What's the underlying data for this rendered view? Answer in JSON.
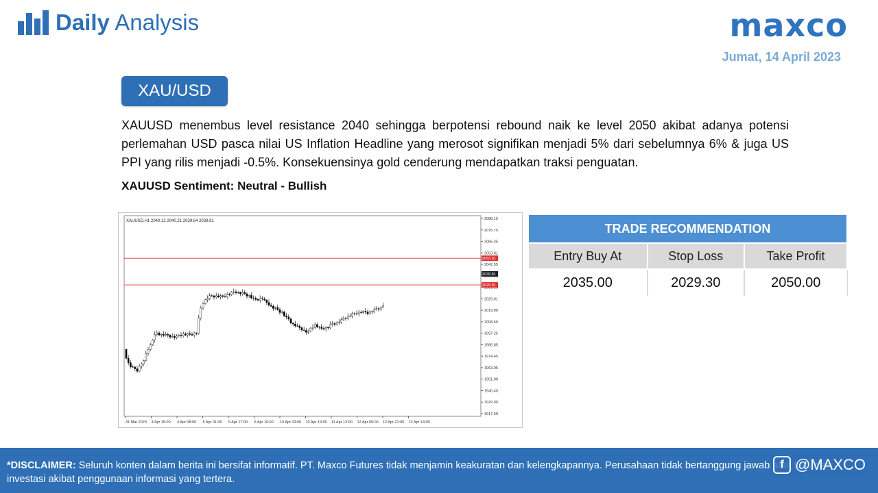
{
  "header": {
    "brand_bold": "Daily",
    "brand_light": "Analysis",
    "logo": "maxco",
    "date": "Jumat, 14 April 2023"
  },
  "pair_label": "XAU/USD",
  "description": "XAUUSD menembus level resistance 2040 sehingga berpotensi rebound naik ke level 2050 akibat adanya potensi perlemahan USD pasca nilai US Inflation Headline yang merosot signifikan menjadi 5% dari sebelumnya 6% & juga US PPI yang rilis menjadi -0.5%. Konsekuensinya gold cenderung mendapatkan traksi penguatan.",
  "sentiment": "XAUUSD Sentiment: Neutral - Bullish",
  "chart_data": {
    "type": "candlestick",
    "title": "XAUUSD,H1  2040.12 2040.21 2039.64 2039.81",
    "y_ticks": [
      "2088.15",
      "2076.75",
      "2065.35",
      "2053.81",
      "2042.55",
      "2039.81",
      "2031.15",
      "2029.91",
      "2019.90",
      "2008.50",
      "1997.25",
      "1985.85",
      "1974.45",
      "1963.05",
      "1951.80",
      "1940.40",
      "1929.00",
      "1917.60"
    ],
    "x_ticks": [
      "31 Mar 2023",
      "3 Apr 15:00",
      "4 Apr 08:00",
      "5 Apr 01:00",
      "5 Apr 17:00",
      "6 Apr 10:00",
      "10 Apr 03:00",
      "10 Apr 19:00",
      "11 Apr 12:00",
      "12 Apr 05:00",
      "12 Apr 21:00",
      "13 Apr 14:00"
    ],
    "ylim": [
      1912,
      2092
    ],
    "levels": [
      {
        "label": "2053.81",
        "value": 2053.81,
        "color": "#e03030"
      },
      {
        "label": "2039.81",
        "value": 2039.81,
        "color": "#222222"
      },
      {
        "label": "2029.91",
        "value": 2029.91,
        "color": "#e03030"
      }
    ],
    "close_path": [
      1972,
      1955,
      1953,
      1962,
      1978,
      1988,
      1985,
      1984,
      1983,
      1986,
      1985,
      1987,
      2018,
      2020,
      2020,
      2019,
      2022,
      2024,
      2022,
      2020,
      2016,
      2018,
      2012,
      2008,
      2005,
      1998,
      1993,
      1990,
      1987,
      1995,
      1990,
      1992,
      1996,
      1998,
      2002,
      2004,
      2006,
      2005,
      2007,
      2010,
      2015,
      2020,
      2012,
      2005,
      2008,
      2012,
      2014,
      2016,
      2015,
      2025,
      2032,
      2045,
      2040,
      2041,
      2040
    ]
  },
  "trade": {
    "title": "TRADE RECOMMENDATION",
    "columns": [
      "Entry Buy At",
      "Stop Loss",
      "Take Profit"
    ],
    "values": [
      "2035.00",
      "2029.30",
      "2050.00"
    ]
  },
  "footer": {
    "disclaimer_label": "*DISCLAIMER:",
    "disclaimer_text": "Seluruh konten dalam berita ini bersifat informatif. PT. Maxco Futures tidak menjamin keakuratan dan kelengkapannya. Perusahaan tidak bertanggung jawab atas kerugian investasi akibat penggunaan informasi yang tertera.",
    "social_handle": "@MAXCO",
    "social_icon": "facebook-icon"
  }
}
